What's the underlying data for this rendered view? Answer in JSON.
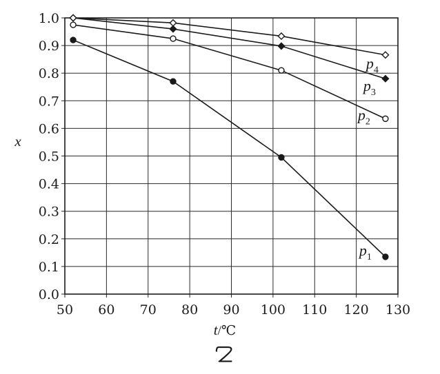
{
  "chart_data": {
    "type": "line",
    "xlabel": "t",
    "xunit": "/℃",
    "ylabel": "x",
    "caption": "乙",
    "xlim": [
      50,
      130
    ],
    "ylim": [
      0.0,
      1.0
    ],
    "xticks": [
      "50",
      "60",
      "70",
      "80",
      "90",
      "100",
      "110",
      "120",
      "130"
    ],
    "yticks": [
      "0.0",
      "0.1",
      "0.2",
      "0.3",
      "0.4",
      "0.5",
      "0.6",
      "0.7",
      "0.8",
      "0.9",
      "1.0"
    ],
    "grid": true,
    "series": [
      {
        "name": "p",
        "sub": "1",
        "marker": "filled-circle",
        "x": [
          52,
          76,
          102,
          127
        ],
        "y": [
          0.92,
          0.77,
          0.495,
          0.135
        ]
      },
      {
        "name": "p",
        "sub": "2",
        "marker": "open-circle",
        "x": [
          52,
          76,
          102,
          127
        ],
        "y": [
          0.975,
          0.925,
          0.81,
          0.635
        ]
      },
      {
        "name": "p",
        "sub": "3",
        "marker": "filled-diamond",
        "x": [
          52,
          76,
          102,
          127
        ],
        "y": [
          1.0,
          0.96,
          0.898,
          0.78
        ]
      },
      {
        "name": "p",
        "sub": "4",
        "marker": "open-diamond",
        "x": [
          52,
          76,
          102,
          127
        ],
        "y": [
          1.0,
          0.982,
          0.934,
          0.866
        ]
      }
    ]
  }
}
